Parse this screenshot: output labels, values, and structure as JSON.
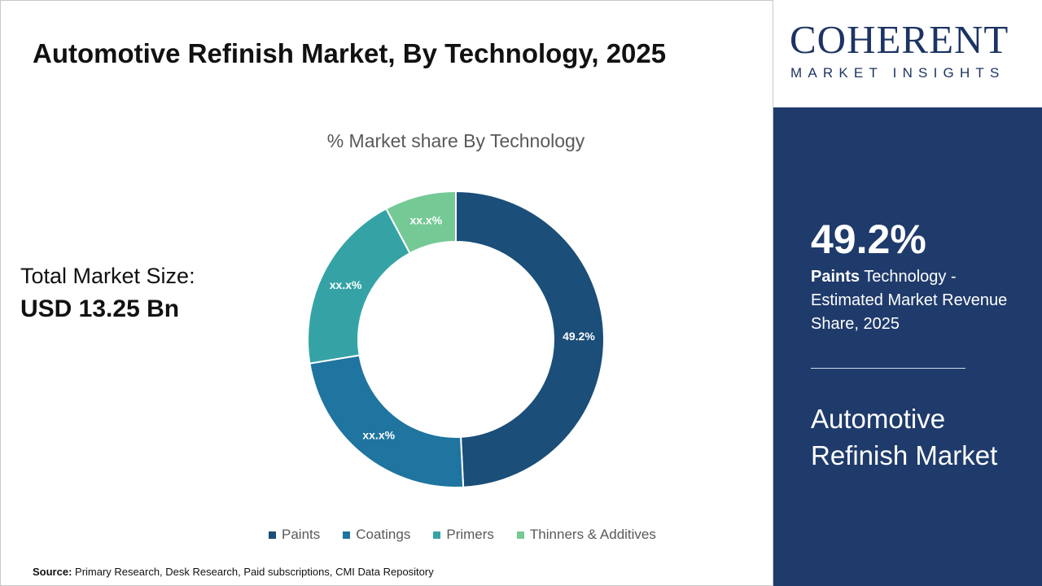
{
  "title": "Automotive Refinish Market, By Technology, 2025",
  "total_market": {
    "label": "Total Market Size:",
    "value": "USD 13.25 Bn"
  },
  "source": {
    "label": "Source:",
    "text": " Primary Research, Desk Research, Paid subscriptions, CMI Data Repository"
  },
  "logo": {
    "top": "COHERENT",
    "bottom": "MARKET INSIGHTS"
  },
  "panel": {
    "percent": "49.2%",
    "segment": "Paints",
    "desc": " Technology - Estimated Market Revenue Share, 2025",
    "market": "Automotive Refinish Market"
  },
  "chart_data": {
    "type": "pie",
    "subtype": "donut",
    "title": "% Market share By Technology",
    "categories": [
      "Paints",
      "Coatings",
      "Primers",
      "Thinners & Additives"
    ],
    "values": [
      49.2,
      23.2,
      19.8,
      7.8
    ],
    "data_labels": [
      "49.2%",
      "xx.x%",
      "xx.x%",
      "xx.x%"
    ],
    "colors": [
      "#1b4e79",
      "#1f74a0",
      "#35a3a6",
      "#75c995"
    ],
    "legend": "bottom"
  }
}
